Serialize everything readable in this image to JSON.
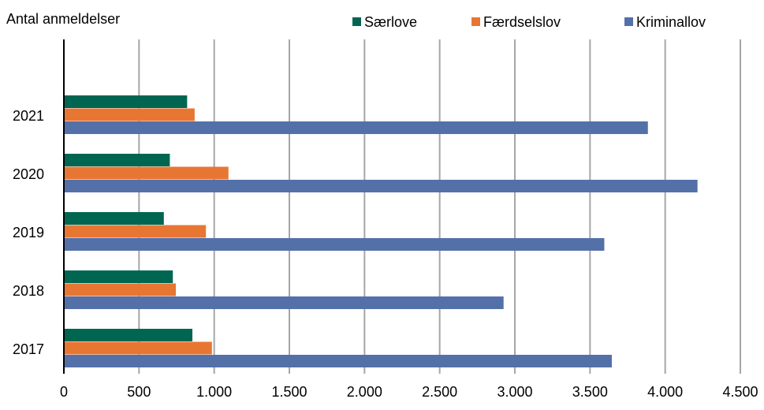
{
  "chart_data": {
    "type": "bar",
    "orientation": "horizontal",
    "ylabel": "Antal anmeldelser",
    "xlabel": "",
    "categories": [
      "2017",
      "2018",
      "2019",
      "2020",
      "2021"
    ],
    "series": [
      {
        "name": "Særlove",
        "color": "#006652",
        "values": [
          855,
          725,
          665,
          705,
          820
        ]
      },
      {
        "name": "Færdselslov",
        "color": "#E87633",
        "values": [
          985,
          745,
          945,
          1095,
          870
        ]
      },
      {
        "name": "Kriminallov",
        "color": "#5470A8",
        "values": [
          3645,
          2925,
          3595,
          4215,
          3885
        ]
      }
    ],
    "xlim": [
      0,
      4500
    ],
    "xticks": [
      0,
      500,
      1000,
      1500,
      2000,
      2500,
      3000,
      3500,
      4000,
      4500
    ],
    "xtick_labels": [
      "0",
      "500",
      "1.000",
      "1.500",
      "2.000",
      "2.500",
      "3.000",
      "3.500",
      "4.000",
      "4.500"
    ],
    "grid": "vertical",
    "legend_position": "top-right"
  }
}
